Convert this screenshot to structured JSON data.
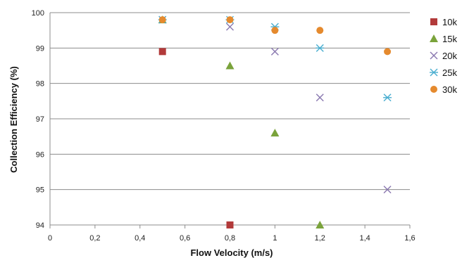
{
  "chart_data": {
    "type": "scatter",
    "xlabel": "Flow Velocity (m/s)",
    "ylabel": "Collection Efficiency (%)",
    "xlim": [
      0,
      1.6
    ],
    "ylim": [
      94,
      100
    ],
    "x_ticks": [
      0,
      0.2,
      0.4,
      0.6,
      0.8,
      1,
      1.2,
      1.4,
      1.6
    ],
    "x_tick_labels": [
      "0",
      "0,2",
      "0,4",
      "0,6",
      "0,8",
      "1",
      "1,2",
      "1,4",
      "1,6"
    ],
    "y_ticks": [
      94,
      95,
      96,
      97,
      98,
      99,
      100
    ],
    "y_tick_labels": [
      "94",
      "95",
      "96",
      "97",
      "98",
      "99",
      "100"
    ],
    "grid": "horizontal",
    "legend_position": "right",
    "series": [
      {
        "name": "10k",
        "marker": "square",
        "color": "#b23a3a",
        "points": [
          [
            0.5,
            98.9
          ],
          [
            0.8,
            94.0
          ]
        ]
      },
      {
        "name": "15k",
        "marker": "triangle",
        "color": "#7aa33b",
        "points": [
          [
            0.5,
            99.8
          ],
          [
            0.8,
            98.5
          ],
          [
            1.0,
            96.6
          ],
          [
            1.2,
            94.0
          ]
        ]
      },
      {
        "name": "20k",
        "marker": "x",
        "color": "#8a78b0",
        "points": [
          [
            0.5,
            99.8
          ],
          [
            0.8,
            99.6
          ],
          [
            1.0,
            98.9
          ],
          [
            1.2,
            97.6
          ],
          [
            1.5,
            95.0
          ]
        ]
      },
      {
        "name": "25k",
        "marker": "star",
        "color": "#4aaed0",
        "points": [
          [
            0.5,
            99.8
          ],
          [
            0.8,
            99.8
          ],
          [
            1.0,
            99.6
          ],
          [
            1.2,
            99.0
          ],
          [
            1.5,
            97.6
          ]
        ]
      },
      {
        "name": "30k",
        "marker": "circle",
        "color": "#e58a2e",
        "points": [
          [
            0.5,
            99.8
          ],
          [
            0.8,
            99.8
          ],
          [
            1.0,
            99.5
          ],
          [
            1.2,
            99.5
          ],
          [
            1.5,
            98.9
          ]
        ]
      }
    ]
  }
}
